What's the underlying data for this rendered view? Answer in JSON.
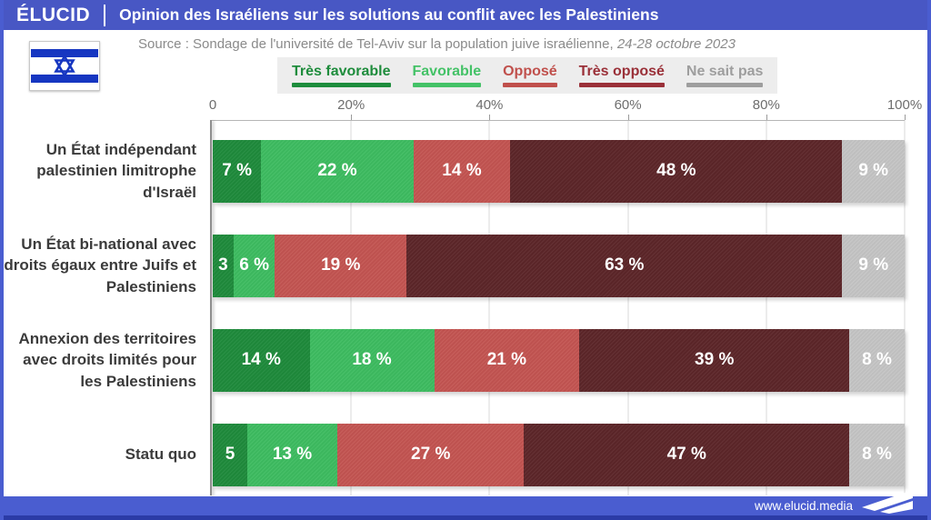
{
  "header": {
    "brand": "ÉLUCID",
    "title": "Opinion des Israéliens sur les solutions au conflit avec les Palestiniens"
  },
  "source": {
    "text": "Source : Sondage de l'université de Tel-Aviv sur la population juive israélienne,",
    "date": "24-28 octobre 2023"
  },
  "legend": {
    "items": [
      {
        "label": "Très favorable",
        "color": "#1e8c3c"
      },
      {
        "label": "Favorable",
        "color": "#44c267"
      },
      {
        "label": "Opposé",
        "color": "#c0504c"
      },
      {
        "label": "Très opposé",
        "color": "#9a3038"
      },
      {
        "label": "Ne sait pas",
        "color": "#9e9e9e"
      }
    ]
  },
  "footer": {
    "url": "www.elucid.media"
  },
  "colors": {
    "header_blue": "#4857c4",
    "footer_blue": "#4a5dd0",
    "footer_dark_blue": "#2b3ba6",
    "flag_blue": "#1636c1",
    "legend_background": "#ededed"
  },
  "chart_data": {
    "type": "bar",
    "stacked": true,
    "orientation": "horizontal",
    "title": "Opinion des Israéliens sur les solutions au conflit avec les Palestiniens",
    "xlim": [
      0,
      100
    ],
    "axis_ticks": [
      "0",
      "20%",
      "40%",
      "60%",
      "80%",
      "100%"
    ],
    "grid": true,
    "legend_position": "top",
    "categories": [
      "Un État indépendant palestinien limitrophe d'Israël",
      "Un État bi-national avec droits égaux entre Juifs et Palestiniens",
      "Annexion des territoires avec droits limités pour les Palestiniens",
      "Statu quo"
    ],
    "series": [
      {
        "name": "Très favorable",
        "color": "#1f8b3c",
        "values": [
          7,
          3,
          14,
          5
        ],
        "labels": [
          "7 %",
          "3",
          "14 %",
          "5"
        ]
      },
      {
        "name": "Favorable",
        "color": "#3ebd61",
        "values": [
          22,
          6,
          18,
          13
        ],
        "labels": [
          "22 %",
          "6 %",
          "18 %",
          "13 %"
        ]
      },
      {
        "name": "Opposé",
        "color": "#c45552",
        "values": [
          14,
          19,
          21,
          27
        ],
        "labels": [
          "14 %",
          "19 %",
          "21 %",
          "27 %"
        ]
      },
      {
        "name": "Très opposé",
        "color": "#5d2629",
        "values": [
          48,
          63,
          39,
          47
        ],
        "labels": [
          "48 %",
          "63 %",
          "39 %",
          "47 %"
        ]
      },
      {
        "name": "Ne sait pas",
        "color": "#c5c5c5",
        "values": [
          9,
          9,
          8,
          8
        ],
        "labels": [
          "9 %",
          "9 %",
          "8 %",
          "8 %"
        ]
      }
    ]
  }
}
